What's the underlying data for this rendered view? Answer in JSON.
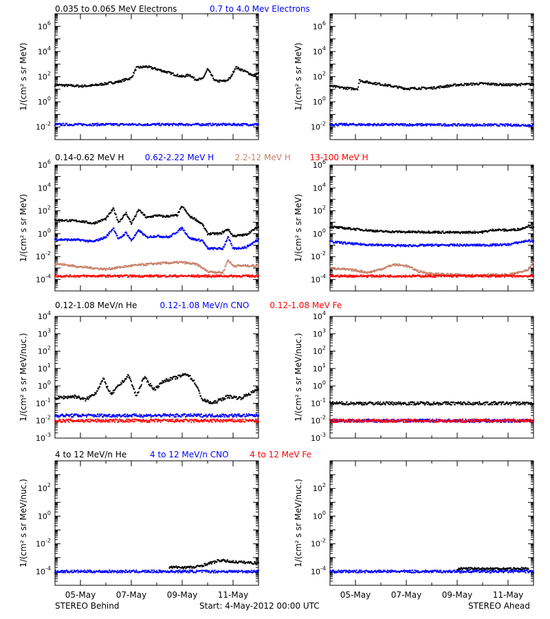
{
  "footer": {
    "left": "STEREO Behind",
    "center": "Start:  4-May-2012 00:00 UTC",
    "right": "STEREO Ahead"
  },
  "chart_data": [
    {
      "id": "electrons",
      "type": "scatter",
      "ylabel": "1/(cm² s sr MeV)",
      "yscale": "log",
      "ylim_exp": [
        -3,
        7
      ],
      "ytick_exp": [
        -2,
        0,
        2,
        4,
        6
      ],
      "legend": [
        {
          "text": "0.035 to 0.065 MeV Electrons",
          "color": "#000000"
        },
        {
          "text": "0.7 to 4.0 Mev Electrons",
          "color": "#0000ff"
        }
      ],
      "series": [
        {
          "name": "0.035 to 0.065 MeV Electrons",
          "color": "#000000",
          "behind": [
            [
              0,
              1.35
            ],
            [
              0.5,
              1.3
            ],
            [
              1,
              1.25
            ],
            [
              1.5,
              1.3
            ],
            [
              2,
              1.45
            ],
            [
              2.5,
              1.6
            ],
            [
              3,
              1.9
            ],
            [
              3.2,
              2.7
            ],
            [
              3.6,
              2.8
            ],
            [
              4,
              2.6
            ],
            [
              4.5,
              2.3
            ],
            [
              5,
              2.0
            ],
            [
              5.3,
              2.15
            ],
            [
              5.5,
              1.8
            ],
            [
              5.8,
              1.8
            ],
            [
              6.0,
              2.6
            ],
            [
              6.3,
              1.65
            ],
            [
              6.7,
              1.65
            ],
            [
              6.9,
              1.9
            ],
            [
              7.1,
              2.75
            ],
            [
              7.5,
              2.4
            ],
            [
              7.8,
              2.1
            ],
            [
              8,
              2.25
            ]
          ],
          "ahead": [
            [
              0,
              1.25
            ],
            [
              0.8,
              1.05
            ],
            [
              1.1,
              1.05
            ],
            [
              1.15,
              1.7
            ],
            [
              1.5,
              1.55
            ],
            [
              2,
              1.4
            ],
            [
              3,
              1.05
            ],
            [
              4,
              1.1
            ],
            [
              5,
              1.35
            ],
            [
              6,
              1.45
            ],
            [
              7,
              1.35
            ],
            [
              8,
              1.4
            ]
          ]
        },
        {
          "name": "0.7 to 4.0 Mev Electrons",
          "color": "#0000ff",
          "behind": [
            [
              0,
              -1.8
            ],
            [
              8,
              -1.8
            ]
          ],
          "ahead": [
            [
              0,
              -1.8
            ],
            [
              8,
              -1.85
            ]
          ]
        }
      ]
    },
    {
      "id": "protons",
      "type": "scatter",
      "ylabel": "1/(cm² s sr MeV)",
      "yscale": "log",
      "ylim_exp": [
        -5,
        6
      ],
      "ytick_exp": [
        -4,
        -2,
        0,
        2,
        4,
        6
      ],
      "legend": [
        {
          "text": "0.14-0.62 MeV H",
          "color": "#000000"
        },
        {
          "text": "0.62-2.22 MeV H",
          "color": "#0000ff"
        },
        {
          "text": "2.2-12 MeV H",
          "color": "#c8826a"
        },
        {
          "text": "13-100 MeV H",
          "color": "#ff0000"
        }
      ],
      "series": [
        {
          "name": "0.14-0.62 MeV H",
          "color": "#000000",
          "behind": [
            [
              0,
              1.2
            ],
            [
              1,
              1.1
            ],
            [
              1.5,
              0.9
            ],
            [
              2,
              1.3
            ],
            [
              2.3,
              2.2
            ],
            [
              2.5,
              1.0
            ],
            [
              2.8,
              1.8
            ],
            [
              3,
              0.9
            ],
            [
              3.3,
              2.1
            ],
            [
              3.6,
              1.4
            ],
            [
              4,
              1.6
            ],
            [
              4.3,
              1.5
            ],
            [
              4.8,
              1.6
            ],
            [
              5,
              2.4
            ],
            [
              5.3,
              1.5
            ],
            [
              5.5,
              1.3
            ],
            [
              5.8,
              0.8
            ],
            [
              6,
              0.0
            ],
            [
              6.5,
              0.0
            ],
            [
              6.8,
              0.4
            ],
            [
              7,
              -0.2
            ],
            [
              7.5,
              -0.1
            ],
            [
              8,
              0.6
            ]
          ],
          "ahead": [
            [
              0,
              0.6
            ],
            [
              1,
              0.4
            ],
            [
              2,
              0.2
            ],
            [
              3,
              0.15
            ],
            [
              4,
              0.15
            ],
            [
              5,
              0.1
            ],
            [
              6,
              0.15
            ],
            [
              6.5,
              0.35
            ],
            [
              7,
              0.3
            ],
            [
              7.5,
              0.4
            ],
            [
              7.8,
              0.7
            ],
            [
              8,
              0.5
            ]
          ]
        },
        {
          "name": "0.62-2.22 MeV H",
          "color": "#0000ff",
          "behind": [
            [
              0,
              -0.5
            ],
            [
              1,
              -0.55
            ],
            [
              1.5,
              -0.7
            ],
            [
              2,
              -0.3
            ],
            [
              2.3,
              0.5
            ],
            [
              2.5,
              -0.5
            ],
            [
              2.8,
              0.1
            ],
            [
              3,
              -0.6
            ],
            [
              3.3,
              0.3
            ],
            [
              3.6,
              -0.3
            ],
            [
              4,
              -0.2
            ],
            [
              4.5,
              -0.3
            ],
            [
              5,
              0.5
            ],
            [
              5.3,
              -0.4
            ],
            [
              5.5,
              -0.5
            ],
            [
              5.8,
              -0.6
            ],
            [
              6,
              -1.3
            ],
            [
              6.6,
              -1.3
            ],
            [
              6.8,
              -0.3
            ],
            [
              7,
              -1.3
            ],
            [
              7.5,
              -1.2
            ],
            [
              8,
              -0.5
            ]
          ],
          "ahead": [
            [
              0,
              -0.7
            ],
            [
              1,
              -0.9
            ],
            [
              2,
              -1.0
            ],
            [
              3,
              -1.05
            ],
            [
              4,
              -1.0
            ],
            [
              5,
              -1.0
            ],
            [
              6,
              -1.0
            ],
            [
              7,
              -0.95
            ],
            [
              7.8,
              -0.6
            ],
            [
              8,
              -0.7
            ]
          ]
        },
        {
          "name": "2.2-12 MeV H",
          "color": "#c8826a",
          "behind": [
            [
              0,
              -2.6
            ],
            [
              1,
              -2.9
            ],
            [
              2,
              -3.1
            ],
            [
              3,
              -2.8
            ],
            [
              4,
              -2.6
            ],
            [
              5,
              -2.5
            ],
            [
              5.6,
              -2.7
            ],
            [
              6,
              -3.3
            ],
            [
              6.6,
              -3.4
            ],
            [
              6.8,
              -2.3
            ],
            [
              7,
              -2.8
            ],
            [
              8,
              -2.8
            ]
          ],
          "ahead": [
            [
              0,
              -3.0
            ],
            [
              1,
              -3.2
            ],
            [
              1.5,
              -3.4
            ],
            [
              2,
              -3.1
            ],
            [
              2.5,
              -2.7
            ],
            [
              3,
              -2.8
            ],
            [
              3.5,
              -3.3
            ],
            [
              4,
              -3.5
            ],
            [
              5,
              -3.6
            ],
            [
              6,
              -3.6
            ],
            [
              7,
              -3.6
            ],
            [
              7.8,
              -3.2
            ],
            [
              8,
              -2.5
            ]
          ]
        },
        {
          "name": "13-100 MeV H",
          "color": "#ff0000",
          "behind": [
            [
              0,
              -3.7
            ],
            [
              8,
              -3.7
            ]
          ],
          "ahead": [
            [
              0,
              -3.7
            ],
            [
              8,
              -3.7
            ]
          ]
        }
      ]
    },
    {
      "id": "helium-cno-fe",
      "type": "scatter",
      "ylabel": "1/(cm² s sr MeV/nuc.)",
      "yscale": "log",
      "ylim_exp": [
        -3,
        4
      ],
      "ytick_exp": [
        -3,
        -2,
        -1,
        0,
        1,
        2,
        3,
        4
      ],
      "legend": [
        {
          "text": "0.12-1.08 MeV/n He",
          "color": "#000000"
        },
        {
          "text": "0.12-1.08 MeV/n CNO",
          "color": "#0000ff"
        },
        {
          "text": "0.12-1.08 MeV Fe",
          "color": "#ff0000"
        }
      ],
      "series": [
        {
          "name": "0.12-1.08 MeV/n He",
          "color": "#000000",
          "behind": [
            [
              0,
              -0.7
            ],
            [
              0.8,
              -0.6
            ],
            [
              1.2,
              -0.8
            ],
            [
              1.6,
              -0.4
            ],
            [
              1.9,
              0.4
            ],
            [
              2.2,
              -0.5
            ],
            [
              2.5,
              0.0
            ],
            [
              2.9,
              0.6
            ],
            [
              3.2,
              -0.6
            ],
            [
              3.5,
              0.5
            ],
            [
              3.9,
              -0.2
            ],
            [
              4.3,
              0.3
            ],
            [
              4.8,
              0.5
            ],
            [
              5.2,
              0.7
            ],
            [
              5.5,
              0.2
            ],
            [
              5.8,
              -0.8
            ],
            [
              6.2,
              -1.0
            ],
            [
              6.8,
              -0.6
            ],
            [
              7.3,
              -0.7
            ],
            [
              8,
              -0.2
            ]
          ],
          "ahead": [
            [
              0,
              -1.0
            ],
            [
              8,
              -1.0
            ]
          ]
        },
        {
          "name": "0.12-1.08 MeV/n CNO",
          "color": "#0000ff",
          "behind": [
            [
              0,
              -1.7
            ],
            [
              8,
              -1.7
            ]
          ],
          "ahead": [
            [
              0,
              -2.0
            ],
            [
              8,
              -2.0
            ]
          ]
        },
        {
          "name": "0.12-1.08 MeV Fe",
          "color": "#ff0000",
          "behind": [
            [
              0,
              -2.0
            ],
            [
              8,
              -2.0
            ]
          ],
          "ahead": [
            [
              0,
              -2.0
            ],
            [
              8,
              -2.0
            ]
          ]
        }
      ]
    },
    {
      "id": "high-energy-ions",
      "type": "scatter",
      "ylabel": "1/(cm² s sr MeV/nuc.)",
      "yscale": "log",
      "ylim_exp": [
        -5,
        4
      ],
      "ytick_exp": [
        -4,
        -2,
        0,
        2
      ],
      "legend": [
        {
          "text": "4 to 12 MeV/n He",
          "color": "#000000"
        },
        {
          "text": "4 to 12 MeV/n CNO",
          "color": "#0000ff"
        },
        {
          "text": "4 to 12 MeV Fe",
          "color": "#ff0000"
        }
      ],
      "series": [
        {
          "name": "4 to 12 MeV/n He",
          "color": "#000000",
          "behind": [
            [
              4.5,
              -3.7
            ],
            [
              5.5,
              -3.7
            ],
            [
              6.5,
              -3.2
            ],
            [
              7.0,
              -3.3
            ],
            [
              8,
              -3.4
            ]
          ],
          "ahead": [
            [
              5,
              -3.8
            ],
            [
              7.8,
              -3.8
            ]
          ]
        },
        {
          "name": "4 to 12 MeV/n CNO",
          "color": "#0000ff",
          "behind": [
            [
              0,
              -4.0
            ],
            [
              8,
              -4.0
            ]
          ],
          "ahead": [
            [
              0,
              -4.0
            ],
            [
              8,
              -4.0
            ]
          ]
        },
        {
          "name": "4 to 12 MeV Fe",
          "color": "#ff0000",
          "behind": [],
          "ahead": []
        }
      ]
    }
  ],
  "xaxis": {
    "tick_labels": [
      "05-May",
      "07-May",
      "09-May",
      "11-May"
    ],
    "tick_days": [
      1,
      3,
      5,
      7
    ],
    "xlim_days": [
      0,
      8
    ]
  }
}
